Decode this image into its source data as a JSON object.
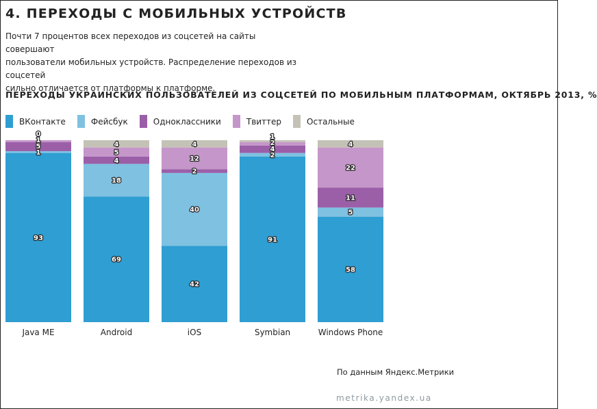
{
  "heading": "4. ПЕРЕХОДЫ С МОБИЛЬНЫХ УСТРОЙСТВ",
  "intro": [
    "Почти 7 процентов всех переходов из соцсетей на сайты совершают",
    "пользователи мобильных устройств. Распределение переходов из соцсетей",
    "сильно отличается от платформы к платформе."
  ],
  "source": "По данным Яндекс.Метрики",
  "footer": "metrika.yandex.ua",
  "colors": {
    "vk": "#2f9ed2",
    "facebook": "#7fc1e1",
    "odnoklassniki": "#9b5fa8",
    "twitter": "#c596c9",
    "other": "#c4c2b6"
  },
  "chart_data": {
    "type": "bar",
    "stacked": true,
    "title": "ПЕРЕХОДЫ УКРАИНСКИХ ПОЛЬЗОВАТЕЛЕЙ ИЗ СОЦСЕТЕЙ ПО МОБИЛЬНЫМ ПЛАТФОРМАМ, ОКТЯБРЬ 2013, %",
    "categories": [
      "Java ME",
      "Android",
      "iOS",
      "Symbian",
      "Windows Phone"
    ],
    "ylim": [
      0,
      100
    ],
    "grid": false,
    "legend_position": "top-left",
    "series": [
      {
        "name": "ВКонтакте",
        "color_key": "vk",
        "values": [
          93,
          69,
          42,
          91,
          58
        ]
      },
      {
        "name": "Фейсбук",
        "color_key": "facebook",
        "values": [
          1,
          18,
          40,
          2,
          5
        ]
      },
      {
        "name": "Одноклассники",
        "color_key": "odnoklassniki",
        "values": [
          5,
          4,
          2,
          4,
          11
        ]
      },
      {
        "name": "Твиттер",
        "color_key": "twitter",
        "values": [
          1,
          5,
          12,
          2,
          22
        ]
      },
      {
        "name": "Остальные",
        "color_key": "other",
        "values": [
          0,
          4,
          4,
          1,
          4
        ]
      }
    ]
  }
}
